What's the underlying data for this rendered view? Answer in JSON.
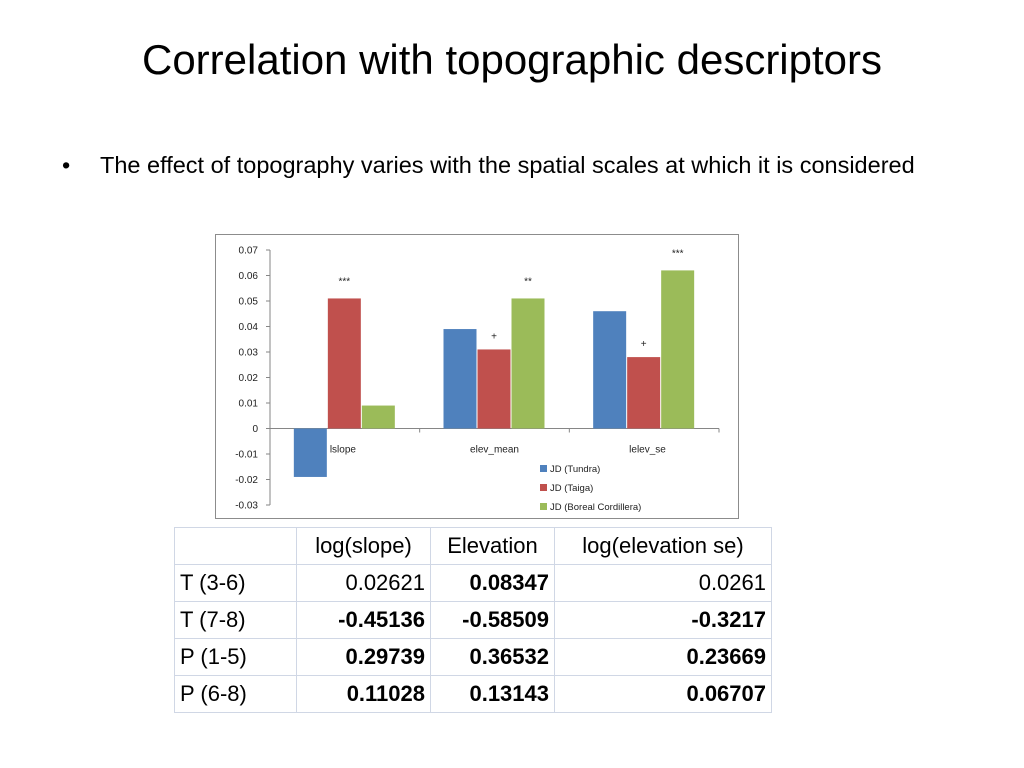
{
  "slide": {
    "title": "Correlation with topographic descriptors",
    "bullet_symbol": "•",
    "bullet_text": "The effect of topography varies with the spatial scales at which it is considered"
  },
  "chart_data": {
    "type": "bar",
    "categories": [
      "lslope",
      "elev_mean",
      "lelev_se"
    ],
    "series": [
      {
        "name": "JD (Tundra)",
        "color": "#4f81bd",
        "values": [
          -0.019,
          0.039,
          0.046
        ]
      },
      {
        "name": "JD (Taiga)",
        "color": "#c0504d",
        "values": [
          0.051,
          0.031,
          0.028
        ]
      },
      {
        "name": "JD (Boreal Cordillera)",
        "color": "#9bbb59",
        "values": [
          0.009,
          0.051,
          0.062
        ]
      }
    ],
    "annotations": [
      {
        "category": 0,
        "series": 1,
        "text": "***"
      },
      {
        "category": 1,
        "series": 1,
        "text": "+"
      },
      {
        "category": 1,
        "series": 2,
        "text": "**"
      },
      {
        "category": 2,
        "series": 1,
        "text": "+"
      },
      {
        "category": 2,
        "series": 2,
        "text": "***"
      }
    ],
    "yticks": [
      "0.07",
      "0.06",
      "0.05",
      "0.04",
      "0.03",
      "0.02",
      "0.01",
      "0",
      "-0.01",
      "-0.02",
      "-0.03"
    ],
    "ylim": [
      -0.03,
      0.07
    ],
    "legend_position": "bottom-right",
    "grid": false
  },
  "table": {
    "headers": [
      "",
      "log(slope)",
      "Elevation",
      "log(elevation se)"
    ],
    "rows": [
      {
        "label": "T (3-6)",
        "cells": [
          {
            "v": "0.02621",
            "b": false
          },
          {
            "v": "0.08347",
            "b": true
          },
          {
            "v": "0.0261",
            "b": false
          }
        ]
      },
      {
        "label": "T (7-8)",
        "cells": [
          {
            "v": "-0.45136",
            "b": true
          },
          {
            "v": "-0.58509",
            "b": true
          },
          {
            "v": "-0.3217",
            "b": true
          }
        ]
      },
      {
        "label": "P (1-5)",
        "cells": [
          {
            "v": "0.29739",
            "b": true
          },
          {
            "v": "0.36532",
            "b": true
          },
          {
            "v": "0.23669",
            "b": true
          }
        ]
      },
      {
        "label": "P (6-8)",
        "cells": [
          {
            "v": "0.11028",
            "b": true
          },
          {
            "v": "0.13143",
            "b": true
          },
          {
            "v": "0.06707",
            "b": true
          }
        ]
      }
    ]
  }
}
